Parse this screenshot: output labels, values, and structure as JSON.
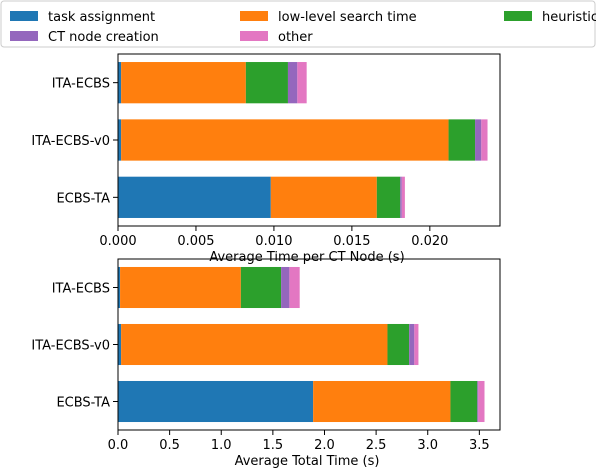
{
  "legend": {
    "placement": "top",
    "entries": [
      {
        "label": "task assignment",
        "color": "#1f77b4"
      },
      {
        "label": "low-level search time",
        "color": "#ff7f0e"
      },
      {
        "label": "heuristic calculation for CT nodes",
        "color": "#2ca02c"
      },
      {
        "label": "CT node creation",
        "color": "#9467bd"
      },
      {
        "label": "other",
        "color": "#e377c2"
      }
    ]
  },
  "chart_data": [
    {
      "type": "bar",
      "orientation": "horizontal",
      "stacked": true,
      "xlabel": "Average Time per CT Node (s)",
      "ylabel": "",
      "xlim": [
        0,
        0.0245
      ],
      "xticks": [
        0.0,
        0.005,
        0.01,
        0.015,
        0.02
      ],
      "xtick_labels": [
        "0.000",
        "0.005",
        "0.010",
        "0.015",
        "0.020"
      ],
      "categories": [
        "ITA-ECBS",
        "ITA-ECBS-v0",
        "ECBS-TA"
      ],
      "series": [
        {
          "name": "task assignment",
          "color": "#1f77b4",
          "values": [
            0.0002,
            0.0002,
            0.0098
          ]
        },
        {
          "name": "low-level search time",
          "color": "#ff7f0e",
          "values": [
            0.008,
            0.021,
            0.0068
          ]
        },
        {
          "name": "heuristic calculation for CT nodes",
          "color": "#2ca02c",
          "values": [
            0.0027,
            0.0017,
            0.0015
          ]
        },
        {
          "name": "CT node creation",
          "color": "#9467bd",
          "values": [
            0.0006,
            0.0004,
            0.0001
          ]
        },
        {
          "name": "other",
          "color": "#e377c2",
          "values": [
            0.0006,
            0.0004,
            0.0002
          ]
        }
      ]
    },
    {
      "type": "bar",
      "orientation": "horizontal",
      "stacked": true,
      "xlabel": "Average Total Time (s)",
      "ylabel": "",
      "xlim": [
        0,
        3.7
      ],
      "xticks": [
        0.0,
        0.5,
        1.0,
        1.5,
        2.0,
        2.5,
        3.0,
        3.5
      ],
      "xtick_labels": [
        "0.0",
        "0.5",
        "1.0",
        "1.5",
        "2.0",
        "2.5",
        "3.0",
        "3.5"
      ],
      "categories": [
        "ITA-ECBS",
        "ITA-ECBS-v0",
        "ECBS-TA"
      ],
      "series": [
        {
          "name": "task assignment",
          "color": "#1f77b4",
          "values": [
            0.02,
            0.03,
            1.89
          ]
        },
        {
          "name": "low-level search time",
          "color": "#ff7f0e",
          "values": [
            1.17,
            2.58,
            1.33
          ]
        },
        {
          "name": "heuristic calculation for CT nodes",
          "color": "#2ca02c",
          "values": [
            0.39,
            0.21,
            0.26
          ]
        },
        {
          "name": "CT node creation",
          "color": "#9467bd",
          "values": [
            0.08,
            0.05,
            0.01
          ]
        },
        {
          "name": "other",
          "color": "#e377c2",
          "values": [
            0.1,
            0.04,
            0.06
          ]
        }
      ]
    }
  ]
}
